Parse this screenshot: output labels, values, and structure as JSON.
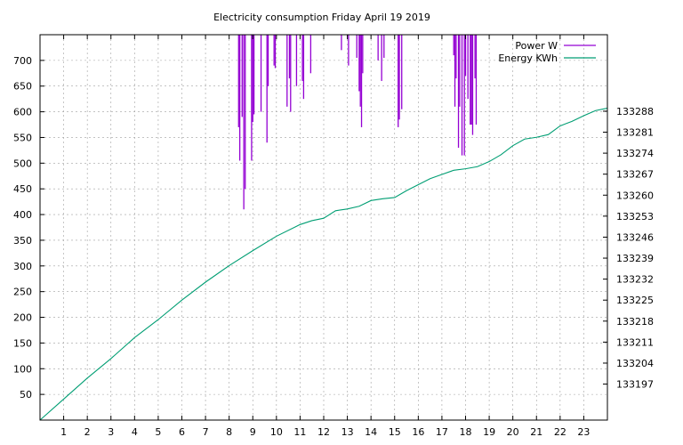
{
  "chart_data": {
    "type": "line",
    "title": "Electricity consumption Friday April 19 2019",
    "xlabel": "",
    "ylabel": "",
    "y2label": "",
    "xlim": [
      0,
      24
    ],
    "ylim": [
      0,
      750
    ],
    "y2lim": [
      133185,
      133313.5
    ],
    "grid": true,
    "legend_position": "top-right",
    "x_ticks": [
      1,
      2,
      3,
      4,
      5,
      6,
      7,
      8,
      9,
      10,
      11,
      12,
      13,
      14,
      15,
      16,
      17,
      18,
      19,
      20,
      21,
      22,
      23
    ],
    "y_ticks": [
      50,
      100,
      150,
      200,
      250,
      300,
      350,
      400,
      450,
      500,
      550,
      600,
      650,
      700
    ],
    "y2_ticks": [
      133197,
      133204,
      133211,
      133218,
      133225,
      133232,
      133239,
      133246,
      133253,
      133260,
      133267,
      133274,
      133281,
      133288
    ],
    "series": [
      {
        "name": "Power W",
        "axis": "y",
        "color": "#9400d3",
        "style": "impulses",
        "spikes": [
          [
            8.4,
            570
          ],
          [
            8.45,
            505
          ],
          [
            8.55,
            590
          ],
          [
            8.62,
            410
          ],
          [
            8.68,
            450
          ],
          [
            8.95,
            505
          ],
          [
            9.0,
            580
          ],
          [
            9.05,
            595
          ],
          [
            9.35,
            600
          ],
          [
            9.6,
            540
          ],
          [
            9.65,
            650
          ],
          [
            9.9,
            690
          ],
          [
            9.95,
            685
          ],
          [
            10.45,
            610
          ],
          [
            10.55,
            665
          ],
          [
            10.6,
            600
          ],
          [
            10.85,
            650
          ],
          [
            11.1,
            660
          ],
          [
            11.15,
            625
          ],
          [
            11.45,
            675
          ],
          [
            12.75,
            720
          ],
          [
            13.05,
            690
          ],
          [
            13.4,
            705
          ],
          [
            13.5,
            640
          ],
          [
            13.55,
            610
          ],
          [
            13.6,
            570
          ],
          [
            13.65,
            675
          ],
          [
            14.3,
            700
          ],
          [
            14.45,
            660
          ],
          [
            14.55,
            705
          ],
          [
            15.15,
            570
          ],
          [
            15.2,
            585
          ],
          [
            15.3,
            605
          ],
          [
            17.5,
            710
          ],
          [
            17.55,
            610
          ],
          [
            17.6,
            665
          ],
          [
            17.7,
            530
          ],
          [
            17.75,
            610
          ],
          [
            17.85,
            515
          ],
          [
            17.95,
            515
          ],
          [
            18.0,
            670
          ],
          [
            18.1,
            625
          ],
          [
            18.2,
            575
          ],
          [
            18.25,
            575
          ],
          [
            18.3,
            555
          ],
          [
            18.4,
            665
          ],
          [
            18.45,
            575
          ]
        ]
      },
      {
        "name": "Energy KWh",
        "axis": "y2",
        "color": "#009e73",
        "style": "line",
        "x": [
          0,
          1,
          2,
          3,
          4,
          5,
          6,
          7,
          8,
          9,
          10,
          11,
          11.5,
          12,
          12.5,
          13,
          13.5,
          14,
          14.5,
          15,
          15.5,
          16,
          16.5,
          17,
          17.5,
          18,
          18.5,
          19,
          19.5,
          20,
          20.5,
          21,
          21.5,
          22,
          22.5,
          23,
          23.5,
          24
        ],
        "values": [
          133185,
          133192,
          133199,
          133205.5,
          133212.5,
          133218.5,
          133225,
          133231,
          133236.5,
          133241.5,
          133246.3,
          133250.2,
          133251.5,
          133252.3,
          133254.8,
          133255.4,
          133256.3,
          133258.2,
          133258.8,
          133259.2,
          133261.5,
          133263.5,
          133265.5,
          133266.9,
          133268.3,
          133268.8,
          133269.5,
          133271.2,
          133273.5,
          133276.5,
          133278.7,
          133279.3,
          133280.2,
          133283.1,
          133284.6,
          133286.5,
          133288.2,
          133289
        ]
      }
    ]
  }
}
